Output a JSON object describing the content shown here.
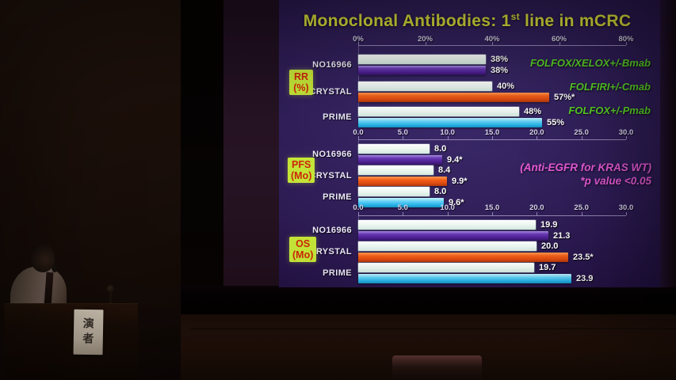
{
  "slide": {
    "title": {
      "pre": "Monoclonal Antibodies: 1",
      "sup": "st",
      "post": " line in mCRC"
    },
    "trial_labels": [
      "FOLFOX/XELOX+/-Bmab",
      "FOLFIRI+/-Cmab",
      "FOLFOX+/-Pmab"
    ],
    "notes": [
      "(Anti-EGFR for KRAS WT)",
      "*p value <0.05"
    ],
    "colors": {
      "slide_background": "#2e1c55",
      "title_yellow": "#dfe33c",
      "trial_label_green": "#5ad226",
      "note_pink": "#e65ad6",
      "bar_white": "#ecf6f0",
      "bar_purple": "#4e2194",
      "bar_orange": "#dc4a10",
      "bar_cyan": "#2ab4e8",
      "group_box_background": "#c4e438",
      "group_box_text": "#cb2708"
    }
  },
  "chart_data": [
    {
      "type": "bar",
      "id": "rr",
      "orientation": "horizontal",
      "group_label": {
        "line1": "RR",
        "line2": "(%)"
      },
      "xlim": [
        0,
        80
      ],
      "tick_labels": [
        "0%",
        "20%",
        "40%",
        "60%",
        "80%"
      ],
      "categories": [
        "NO16966",
        "CRYSTAL",
        "PRIME"
      ],
      "series": [
        {
          "name": "series1",
          "bar_colors": [
            "white",
            "white",
            "white"
          ],
          "values": [
            38,
            40,
            48
          ],
          "display": [
            "38%",
            "40%",
            "48%"
          ]
        },
        {
          "name": "series2",
          "bar_colors": [
            "purple",
            "orange",
            "cyan"
          ],
          "values": [
            38,
            57,
            55
          ],
          "display": [
            "38%",
            "57%*",
            "55%"
          ]
        }
      ]
    },
    {
      "type": "bar",
      "id": "pfs",
      "orientation": "horizontal",
      "group_label": {
        "line1": "PFS",
        "line2": "(Mo)"
      },
      "xlim": [
        0,
        30
      ],
      "tick_labels": [
        "0.0",
        "5.0",
        "10.0",
        "15.0",
        "20.0",
        "25.0",
        "30.0"
      ],
      "categories": [
        "NO16966",
        "CRYSTAL",
        "PRIME"
      ],
      "series": [
        {
          "name": "series1",
          "bar_colors": [
            "white",
            "white",
            "white"
          ],
          "values": [
            8.0,
            8.4,
            8.0
          ],
          "display": [
            "8.0",
            "8.4",
            "8.0"
          ]
        },
        {
          "name": "series2",
          "bar_colors": [
            "purple",
            "orange",
            "cyan"
          ],
          "values": [
            9.4,
            9.9,
            9.6
          ],
          "display": [
            "9.4*",
            "9.9*",
            "9.6*"
          ]
        }
      ]
    },
    {
      "type": "bar",
      "id": "os",
      "orientation": "horizontal",
      "group_label": {
        "line1": "OS",
        "line2": "(Mo)"
      },
      "xlim": [
        0,
        30
      ],
      "tick_labels": [
        "0.0",
        "5.0",
        "10.0",
        "15.0",
        "20.0",
        "25.0",
        "30.0"
      ],
      "categories": [
        "NO16966",
        "CRYSTAL",
        "PRIME"
      ],
      "series": [
        {
          "name": "series1",
          "bar_colors": [
            "white",
            "white",
            "white"
          ],
          "values": [
            19.9,
            20.0,
            19.7
          ],
          "display": [
            "19.9",
            "20.0",
            "19.7"
          ]
        },
        {
          "name": "series2",
          "bar_colors": [
            "purple",
            "orange",
            "cyan"
          ],
          "values": [
            21.3,
            23.5,
            23.9
          ],
          "display": [
            "21.3",
            "23.5*",
            "23.9"
          ]
        }
      ]
    }
  ],
  "scene": {
    "podium_sign": "演者"
  }
}
